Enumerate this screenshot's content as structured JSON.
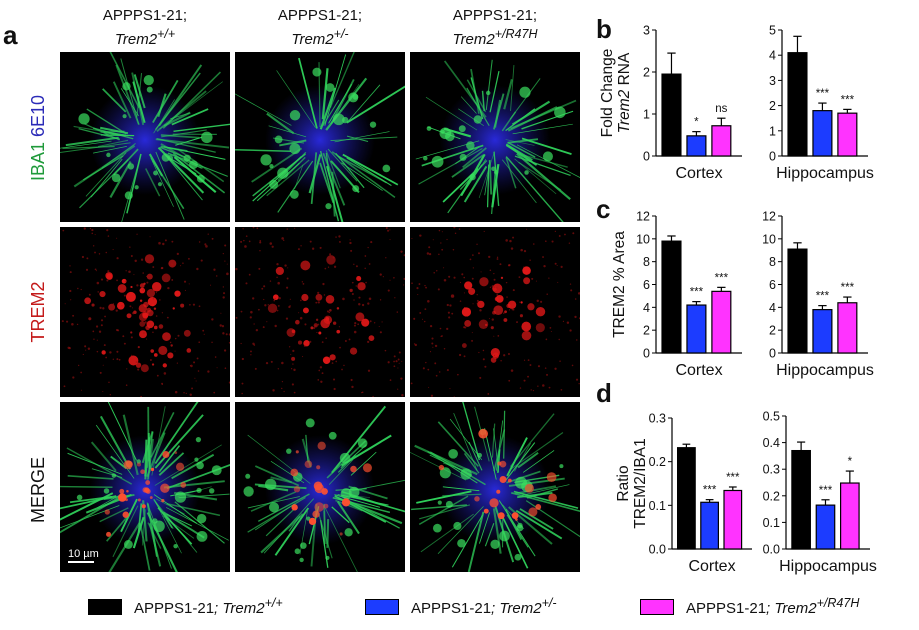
{
  "panel_a": {
    "letter": "a",
    "columns": [
      {
        "line1": "APPPS1-21;",
        "gene": "Trem2",
        "genotype": "+/+"
      },
      {
        "line1": "APPPS1-21;",
        "gene": "Trem2",
        "genotype": "+/-"
      },
      {
        "line1": "APPPS1-21;",
        "gene": "Trem2",
        "genotype": "+/R47H"
      }
    ],
    "row_labels": {
      "row1_part1": "IBA1",
      "row1_part2": "6E10",
      "row2": "TREM2",
      "row3": "MERGE"
    },
    "row_label_colors": {
      "iba1": "#1f9a3a",
      "e10": "#2b2bb8",
      "trem2": "#c41a1a",
      "merge": "#111111"
    },
    "scale_bar": "10 µm"
  },
  "panel_letters": {
    "b": "b",
    "c": "c",
    "d": "d"
  },
  "colors": {
    "wt": "#000000",
    "het": "#1c3cff",
    "r47h": "#ff33ff"
  },
  "chart_data": [
    {
      "id": "b-cortex",
      "type": "bar",
      "panel": "b",
      "ylabel_line1": "Fold Change",
      "ylabel_line2_italic": "Trem2",
      "ylabel_line2_rest": " RNA",
      "xlabel": "Cortex",
      "ylim": [
        0,
        3
      ],
      "yticks": [
        "0",
        "1",
        "2",
        "3"
      ],
      "values": [
        1.95,
        0.48,
        0.72
      ],
      "errors": [
        0.5,
        0.1,
        0.18
      ],
      "sig": [
        "",
        "*",
        "ns"
      ]
    },
    {
      "id": "b-hippocampus",
      "type": "bar",
      "panel": "b",
      "xlabel": "Hippocampus",
      "ylim": [
        0,
        5
      ],
      "yticks": [
        "0",
        "1",
        "2",
        "3",
        "4",
        "5"
      ],
      "values": [
        4.1,
        1.8,
        1.7
      ],
      "errors": [
        0.65,
        0.3,
        0.15
      ],
      "sig": [
        "",
        "***",
        "***"
      ]
    },
    {
      "id": "c-cortex",
      "type": "bar",
      "panel": "c",
      "ylabel_line1": "TREM2 % Area",
      "xlabel": "Cortex",
      "ylim": [
        0,
        12
      ],
      "yticks": [
        "0",
        "2",
        "4",
        "6",
        "8",
        "10",
        "12"
      ],
      "values": [
        9.8,
        4.2,
        5.4
      ],
      "errors": [
        0.45,
        0.3,
        0.35
      ],
      "sig": [
        "",
        "***",
        "***"
      ]
    },
    {
      "id": "c-hippocampus",
      "type": "bar",
      "panel": "c",
      "xlabel": "Hippocampus",
      "ylim": [
        0,
        12
      ],
      "yticks": [
        "0",
        "2",
        "4",
        "6",
        "8",
        "10",
        "12"
      ],
      "values": [
        9.1,
        3.8,
        4.4
      ],
      "errors": [
        0.55,
        0.35,
        0.5
      ],
      "sig": [
        "",
        "***",
        "***"
      ]
    },
    {
      "id": "d-cortex",
      "type": "bar",
      "panel": "d",
      "ylabel_line1": "Ratio",
      "ylabel_line2": "TREM2/IBA1",
      "xlabel": "Cortex",
      "ylim": [
        0,
        0.3
      ],
      "yticks": [
        "0.0",
        "0.1",
        "0.2",
        "0.3"
      ],
      "values": [
        0.232,
        0.107,
        0.134
      ],
      "errors": [
        0.008,
        0.006,
        0.008
      ],
      "sig": [
        "",
        "***",
        "***"
      ]
    },
    {
      "id": "d-hippocampus",
      "type": "bar",
      "panel": "d",
      "xlabel": "Hippocampus",
      "ylim": [
        0,
        0.5
      ],
      "yticks": [
        "0.0",
        "0.1",
        "0.2",
        "0.3",
        "0.4",
        "0.5"
      ],
      "values": [
        0.37,
        0.165,
        0.248
      ],
      "errors": [
        0.032,
        0.02,
        0.045
      ],
      "sig": [
        "",
        "***",
        "*"
      ]
    }
  ],
  "legend": [
    {
      "prefix": "APPPS1-21",
      "sep": ";",
      "gene": " Trem2",
      "genotype": "+/+",
      "color_key": "wt"
    },
    {
      "prefix": "APPPS1-21",
      "sep": ";",
      "gene": " Trem2",
      "genotype": "+/-",
      "color_key": "het"
    },
    {
      "prefix": "APPPS1-21",
      "sep": ";",
      "gene": " Trem2",
      "genotype": "+/R47H",
      "color_key": "r47h"
    }
  ]
}
